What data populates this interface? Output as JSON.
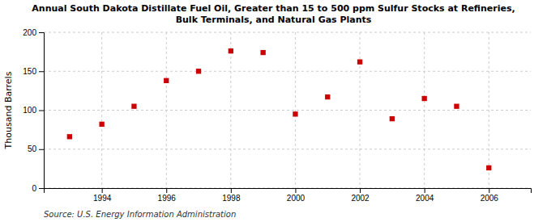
{
  "chart_data": {
    "type": "scatter",
    "title": "Annual South Dakota Distillate Fuel Oil, Greater than 15 to 500 ppm Sulfur Stocks at Refineries,\nBulk Terminals, and Natural Gas Plants",
    "ylabel": "Thousand Barrels",
    "annotations": [
      "Source: U.S. Energy Information Administration"
    ],
    "x": [
      1993,
      1994,
      1995,
      1996,
      1997,
      1998,
      1999,
      2000,
      2001,
      2002,
      2003,
      2004,
      2005,
      2006
    ],
    "values": [
      66,
      82,
      105,
      138,
      150,
      176,
      174,
      95,
      117,
      162,
      89,
      115,
      105,
      26
    ],
    "color": "#cc0000",
    "marker": "square",
    "xlim": [
      1992.2,
      2007.3
    ],
    "xticks": [
      1994,
      1996,
      1998,
      2000,
      2002,
      2004,
      2006
    ],
    "ylim": [
      0,
      200
    ],
    "yticks": [
      0,
      50,
      100,
      150,
      200
    ],
    "grid": true
  }
}
